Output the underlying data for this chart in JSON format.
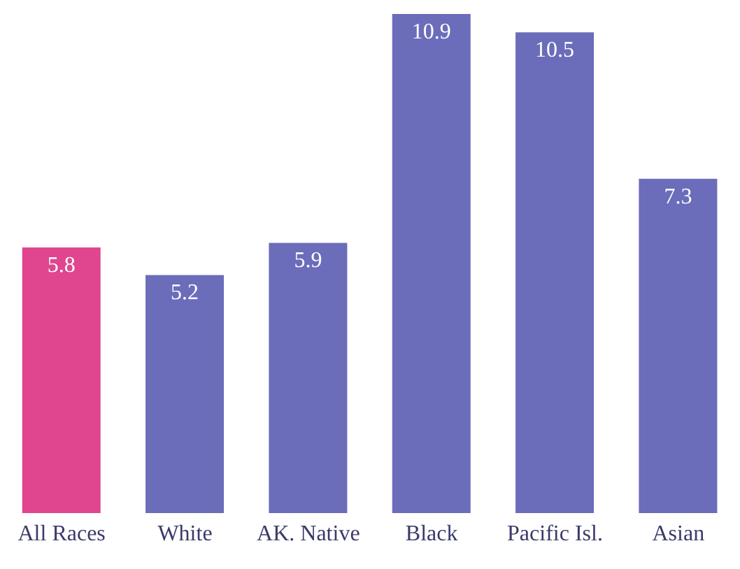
{
  "chart_data": {
    "type": "bar",
    "categories": [
      "All Races",
      "White",
      "AK. Native",
      "Black",
      "Pacific Isl.",
      "Asian"
    ],
    "values": [
      5.8,
      5.2,
      5.9,
      10.9,
      10.5,
      7.3
    ],
    "colors": [
      "#e0468f",
      "#6b6cba",
      "#6b6cba",
      "#6b6cba",
      "#6b6cba",
      "#6b6cba"
    ],
    "data_labels": true,
    "grid": false,
    "legend": false
  }
}
